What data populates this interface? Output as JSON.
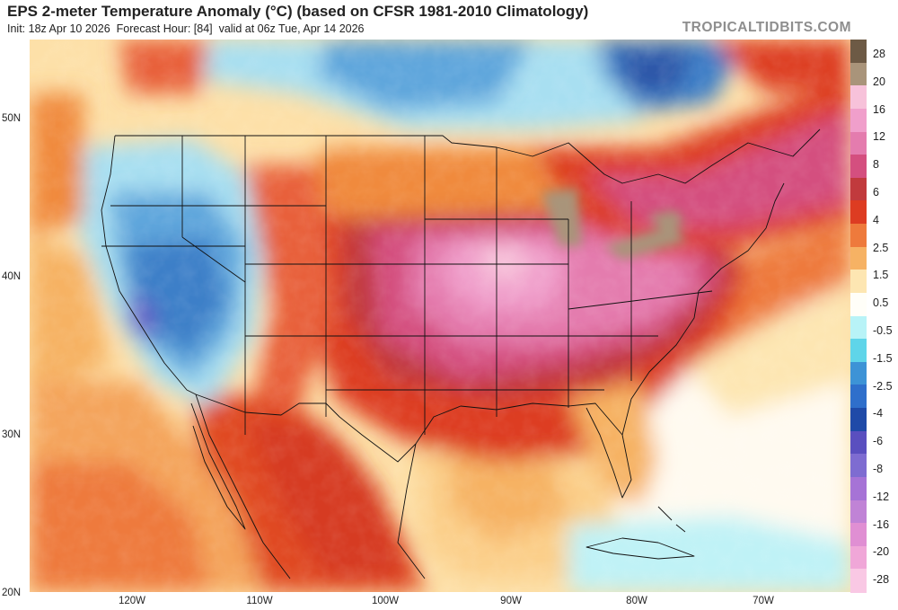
{
  "header": {
    "title": "EPS 2-meter Temperature Anomaly (°C) (based on CFSR 1981-2010 Climatology)",
    "init": "Init: 18z Apr 10 2026",
    "forecast_hour": "Forecast Hour: [84]",
    "valid": "valid at 06z Tue, Apr 14 2026",
    "brand": "TROPICALTIDBITS.COM"
  },
  "axes": {
    "lat_labels": [
      "50N",
      "40N",
      "30N",
      "20N"
    ],
    "lon_labels": [
      "120W",
      "110W",
      "100W",
      "90W",
      "80W",
      "70W"
    ]
  },
  "colorbar": {
    "labels": [
      "28",
      "20",
      "16",
      "12",
      "8",
      "6",
      "4",
      "2.5",
      "1.5",
      "0.5",
      "-0.5",
      "-1.5",
      "-2.5",
      "-4",
      "-6",
      "-8",
      "-12",
      "-16",
      "-20",
      "-28"
    ],
    "colors": [
      "#6d5a45",
      "#a9947a",
      "#f7c2da",
      "#f09fcb",
      "#e47cae",
      "#d44f7f",
      "#c13a3d",
      "#dd3c22",
      "#ee7a3c",
      "#f6b264",
      "#fde6b2",
      "#fffef8",
      "#b8f3f7",
      "#5fd5e9",
      "#3d93d6",
      "#2f6fcb",
      "#1f4aa8",
      "#5a4fbf",
      "#7e6cd1",
      "#a673d6",
      "#c083d6",
      "#e08fd3",
      "#f0a7d8",
      "#f9c8e4"
    ]
  }
}
